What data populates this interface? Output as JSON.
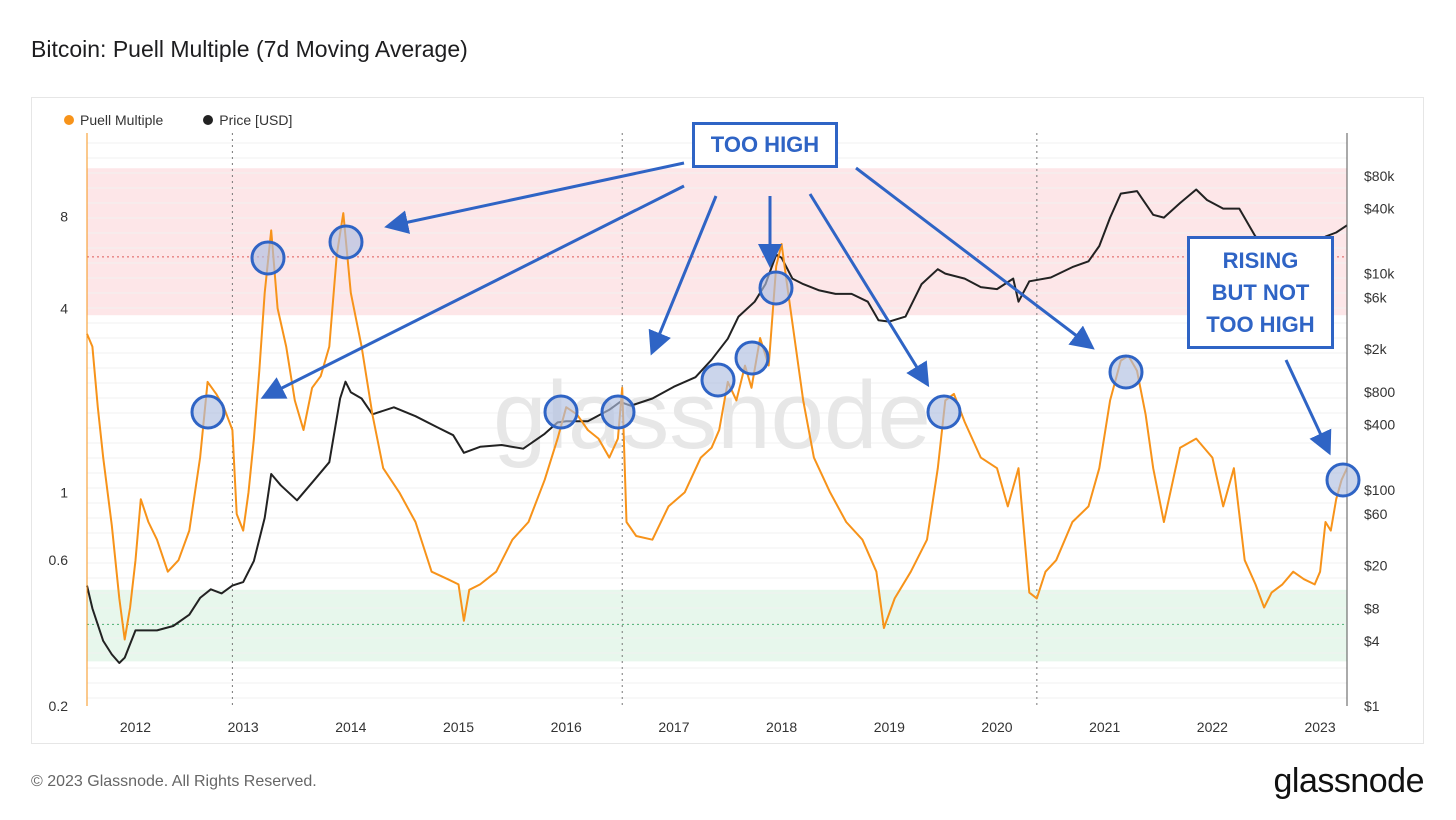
{
  "title": "Bitcoin: Puell Multiple (7d Moving Average)",
  "legend": [
    {
      "label": "Puell Multiple",
      "color": "#f7931a"
    },
    {
      "label": "Price [USD]",
      "color": "#222222"
    }
  ],
  "watermark": "glassnode",
  "footer": "© 2023 Glassnode. All Rights Reserved.",
  "brand": "glassnode",
  "annotations": {
    "too_high": "TOO HIGH",
    "rising": "RISING\nBUT NOT\nTOO HIGH"
  },
  "colors": {
    "puell": "#f7931a",
    "price": "#222222",
    "annotation": "#2f64c5",
    "red_band": "#fde6e8",
    "green_band": "#e7f7ec"
  },
  "chart_data": {
    "type": "line",
    "x_ticks": [
      "2012",
      "2013",
      "2014",
      "2015",
      "2016",
      "2017",
      "2018",
      "2019",
      "2020",
      "2021",
      "2022",
      "2023"
    ],
    "x_range": [
      2011.55,
      2023.25
    ],
    "y_left": {
      "scale": "log",
      "range": [
        0.2,
        15
      ],
      "ticks": [
        "0.2",
        "0.6",
        "1",
        "4",
        "8"
      ],
      "tick_values": [
        0.2,
        0.6,
        1,
        4,
        8
      ]
    },
    "y_right": {
      "scale": "log",
      "range": [
        1,
        200000
      ],
      "ticks": [
        "$1",
        "$4",
        "$8",
        "$20",
        "$60",
        "$100",
        "$400",
        "$800",
        "$2k",
        "$6k",
        "$10k",
        "$40k",
        "$80k"
      ],
      "tick_values": [
        1,
        4,
        8,
        20,
        60,
        100,
        400,
        800,
        2000,
        6000,
        10000,
        40000,
        80000
      ]
    },
    "bands": [
      {
        "name": "overvalued",
        "from": 3.8,
        "to": 11.5,
        "ref_line": 5.9
      },
      {
        "name": "undervalued",
        "from": 0.28,
        "to": 0.48,
        "ref_line": 0.37
      }
    ],
    "halvings": [
      2012.9,
      2016.52,
      2020.37
    ],
    "series": [
      {
        "name": "Puell Multiple",
        "axis": "left",
        "x": [
          2011.55,
          2011.6,
          2011.65,
          2011.7,
          2011.78,
          2011.85,
          2011.9,
          2011.95,
          2012.0,
          2012.05,
          2012.12,
          2012.2,
          2012.3,
          2012.4,
          2012.5,
          2012.6,
          2012.67,
          2012.75,
          2012.82,
          2012.9,
          2012.94,
          2013.0,
          2013.05,
          2013.1,
          2013.15,
          2013.2,
          2013.26,
          2013.32,
          2013.4,
          2013.48,
          2013.56,
          2013.64,
          2013.72,
          2013.8,
          2013.87,
          2013.93,
          2014.0,
          2014.1,
          2014.2,
          2014.3,
          2014.45,
          2014.6,
          2014.75,
          2014.9,
          2015.0,
          2015.05,
          2015.1,
          2015.2,
          2015.35,
          2015.5,
          2015.65,
          2015.8,
          2015.92,
          2016.0,
          2016.1,
          2016.2,
          2016.3,
          2016.4,
          2016.48,
          2016.52,
          2016.56,
          2016.65,
          2016.8,
          2016.95,
          2017.1,
          2017.25,
          2017.35,
          2017.42,
          2017.5,
          2017.58,
          2017.66,
          2017.72,
          2017.8,
          2017.88,
          2017.95,
          2018.0,
          2018.05,
          2018.12,
          2018.2,
          2018.3,
          2018.45,
          2018.6,
          2018.75,
          2018.88,
          2018.95,
          2019.05,
          2019.2,
          2019.35,
          2019.45,
          2019.52,
          2019.6,
          2019.7,
          2019.85,
          2020.0,
          2020.1,
          2020.2,
          2020.3,
          2020.37,
          2020.45,
          2020.55,
          2020.7,
          2020.85,
          2020.95,
          2021.05,
          2021.15,
          2021.22,
          2021.3,
          2021.38,
          2021.45,
          2021.55,
          2021.7,
          2021.85,
          2022.0,
          2022.1,
          2022.2,
          2022.3,
          2022.4,
          2022.48,
          2022.55,
          2022.65,
          2022.75,
          2022.85,
          2022.95,
          2023.0,
          2023.05,
          2023.1,
          2023.15,
          2023.2,
          2023.25
        ],
        "values": [
          3.3,
          3.0,
          1.9,
          1.3,
          0.78,
          0.45,
          0.33,
          0.42,
          0.6,
          0.95,
          0.8,
          0.7,
          0.55,
          0.6,
          0.75,
          1.3,
          2.3,
          2.1,
          1.9,
          1.6,
          0.85,
          0.75,
          1.0,
          1.5,
          2.5,
          4.5,
          7.2,
          4.0,
          3.0,
          2.0,
          1.6,
          2.2,
          2.4,
          3.0,
          6.0,
          8.2,
          4.5,
          3.0,
          1.8,
          1.2,
          1.0,
          0.8,
          0.55,
          0.52,
          0.5,
          0.38,
          0.48,
          0.5,
          0.55,
          0.7,
          0.8,
          1.1,
          1.5,
          1.9,
          1.8,
          1.6,
          1.5,
          1.3,
          1.5,
          2.2,
          0.8,
          0.72,
          0.7,
          0.9,
          1.0,
          1.3,
          1.4,
          1.6,
          2.3,
          2.0,
          2.6,
          2.2,
          3.2,
          2.6,
          5.5,
          6.5,
          4.8,
          3.2,
          2.0,
          1.3,
          1.0,
          0.8,
          0.7,
          0.55,
          0.36,
          0.45,
          0.55,
          0.7,
          1.2,
          2.0,
          2.1,
          1.7,
          1.3,
          1.2,
          0.9,
          1.2,
          0.47,
          0.45,
          0.55,
          0.6,
          0.8,
          0.9,
          1.2,
          2.0,
          2.7,
          2.8,
          2.5,
          1.8,
          1.2,
          0.8,
          1.4,
          1.5,
          1.3,
          0.9,
          1.2,
          0.6,
          0.5,
          0.42,
          0.47,
          0.5,
          0.55,
          0.52,
          0.5,
          0.55,
          0.8,
          0.75,
          0.95,
          1.1,
          1.2
        ]
      },
      {
        "name": "Price [USD]",
        "axis": "right",
        "x": [
          2011.55,
          2011.6,
          2011.7,
          2011.78,
          2011.85,
          2011.9,
          2012.0,
          2012.1,
          2012.2,
          2012.35,
          2012.5,
          2012.6,
          2012.7,
          2012.8,
          2012.9,
          2013.0,
          2013.1,
          2013.2,
          2013.26,
          2013.35,
          2013.5,
          2013.65,
          2013.8,
          2013.9,
          2013.95,
          2014.0,
          2014.1,
          2014.2,
          2014.4,
          2014.6,
          2014.8,
          2014.95,
          2015.05,
          2015.2,
          2015.4,
          2015.6,
          2015.8,
          2015.92,
          2016.0,
          2016.2,
          2016.4,
          2016.5,
          2016.6,
          2016.8,
          2017.0,
          2017.2,
          2017.35,
          2017.5,
          2017.6,
          2017.75,
          2017.85,
          2017.95,
          2018.0,
          2018.1,
          2018.2,
          2018.35,
          2018.5,
          2018.65,
          2018.8,
          2018.9,
          2019.0,
          2019.15,
          2019.3,
          2019.45,
          2019.52,
          2019.7,
          2019.85,
          2020.0,
          2020.15,
          2020.2,
          2020.3,
          2020.5,
          2020.7,
          2020.85,
          2020.95,
          2021.05,
          2021.15,
          2021.3,
          2021.45,
          2021.55,
          2021.7,
          2021.85,
          2021.95,
          2022.1,
          2022.25,
          2022.4,
          2022.5,
          2022.7,
          2022.85,
          2022.95,
          2023.05,
          2023.15,
          2023.25
        ],
        "values": [
          13,
          8,
          4,
          3,
          2.5,
          2.8,
          5,
          5,
          5,
          5.5,
          7,
          10,
          12,
          11,
          13,
          14,
          22,
          55,
          140,
          110,
          80,
          120,
          180,
          700,
          1000,
          800,
          700,
          500,
          580,
          480,
          380,
          320,
          220,
          250,
          260,
          240,
          330,
          420,
          430,
          430,
          550,
          650,
          600,
          700,
          900,
          1100,
          1600,
          2500,
          4000,
          5500,
          8000,
          15000,
          14000,
          9000,
          8000,
          7000,
          6500,
          6500,
          5500,
          3700,
          3600,
          4000,
          8000,
          11000,
          10000,
          9000,
          7500,
          7200,
          9000,
          5500,
          8500,
          9200,
          11500,
          13000,
          18000,
          33000,
          55000,
          58000,
          35000,
          33000,
          45000,
          60000,
          48000,
          40000,
          40000,
          22000,
          20000,
          20000,
          17000,
          17000,
          22000,
          24000,
          28000
        ]
      }
    ]
  }
}
